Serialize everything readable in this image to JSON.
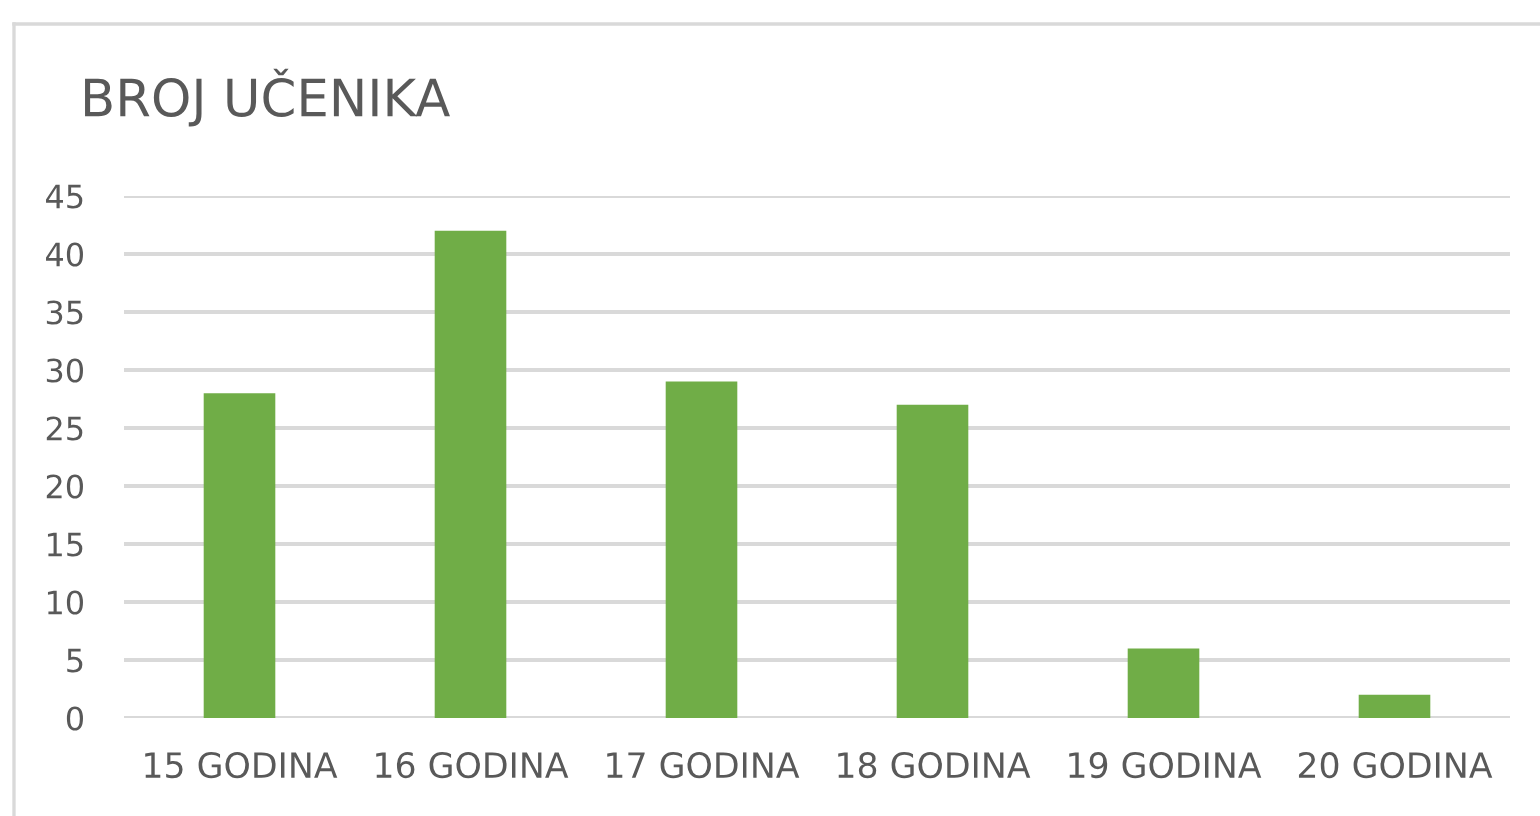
{
  "chart_data": {
    "type": "bar",
    "title": "BROJ UČENIKA",
    "categories": [
      "15 GODINA",
      "16 GODINA",
      "17 GODINA",
      "18 GODINA",
      "19 GODINA",
      "20 GODINA"
    ],
    "values": [
      28,
      42,
      29,
      27,
      6,
      2
    ],
    "color": "#70ad47",
    "ylim": [
      0,
      45
    ],
    "yticks": [
      0,
      5,
      10,
      15,
      20,
      25,
      30,
      35,
      40,
      45
    ],
    "grid": "y"
  }
}
